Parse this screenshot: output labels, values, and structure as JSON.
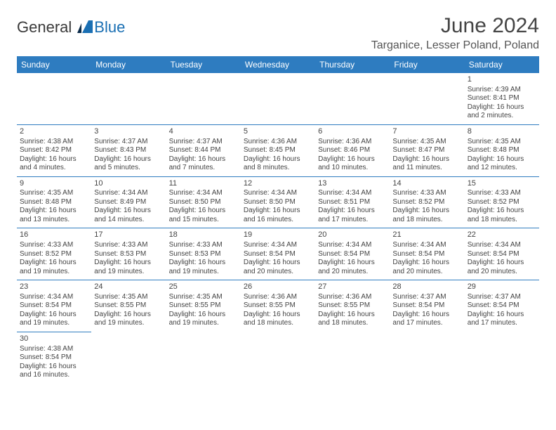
{
  "brand": {
    "word1": "General",
    "word2": "Blue",
    "dark_color": "#3a3a3a",
    "blue_color": "#1a6fb3"
  },
  "title": "June 2024",
  "location": "Targanice, Lesser Poland, Poland",
  "header_bg": "#2e7cc0",
  "header_fg": "#ffffff",
  "border_color": "#2e7cc0",
  "text_color": "#444444",
  "daynames": [
    "Sunday",
    "Monday",
    "Tuesday",
    "Wednesday",
    "Thursday",
    "Friday",
    "Saturday"
  ],
  "weeks": [
    [
      null,
      null,
      null,
      null,
      null,
      null,
      {
        "n": "1",
        "sr": "Sunrise: 4:39 AM",
        "ss": "Sunset: 8:41 PM",
        "d1": "Daylight: 16 hours",
        "d2": "and 2 minutes."
      }
    ],
    [
      {
        "n": "2",
        "sr": "Sunrise: 4:38 AM",
        "ss": "Sunset: 8:42 PM",
        "d1": "Daylight: 16 hours",
        "d2": "and 4 minutes."
      },
      {
        "n": "3",
        "sr": "Sunrise: 4:37 AM",
        "ss": "Sunset: 8:43 PM",
        "d1": "Daylight: 16 hours",
        "d2": "and 5 minutes."
      },
      {
        "n": "4",
        "sr": "Sunrise: 4:37 AM",
        "ss": "Sunset: 8:44 PM",
        "d1": "Daylight: 16 hours",
        "d2": "and 7 minutes."
      },
      {
        "n": "5",
        "sr": "Sunrise: 4:36 AM",
        "ss": "Sunset: 8:45 PM",
        "d1": "Daylight: 16 hours",
        "d2": "and 8 minutes."
      },
      {
        "n": "6",
        "sr": "Sunrise: 4:36 AM",
        "ss": "Sunset: 8:46 PM",
        "d1": "Daylight: 16 hours",
        "d2": "and 10 minutes."
      },
      {
        "n": "7",
        "sr": "Sunrise: 4:35 AM",
        "ss": "Sunset: 8:47 PM",
        "d1": "Daylight: 16 hours",
        "d2": "and 11 minutes."
      },
      {
        "n": "8",
        "sr": "Sunrise: 4:35 AM",
        "ss": "Sunset: 8:48 PM",
        "d1": "Daylight: 16 hours",
        "d2": "and 12 minutes."
      }
    ],
    [
      {
        "n": "9",
        "sr": "Sunrise: 4:35 AM",
        "ss": "Sunset: 8:48 PM",
        "d1": "Daylight: 16 hours",
        "d2": "and 13 minutes."
      },
      {
        "n": "10",
        "sr": "Sunrise: 4:34 AM",
        "ss": "Sunset: 8:49 PM",
        "d1": "Daylight: 16 hours",
        "d2": "and 14 minutes."
      },
      {
        "n": "11",
        "sr": "Sunrise: 4:34 AM",
        "ss": "Sunset: 8:50 PM",
        "d1": "Daylight: 16 hours",
        "d2": "and 15 minutes."
      },
      {
        "n": "12",
        "sr": "Sunrise: 4:34 AM",
        "ss": "Sunset: 8:50 PM",
        "d1": "Daylight: 16 hours",
        "d2": "and 16 minutes."
      },
      {
        "n": "13",
        "sr": "Sunrise: 4:34 AM",
        "ss": "Sunset: 8:51 PM",
        "d1": "Daylight: 16 hours",
        "d2": "and 17 minutes."
      },
      {
        "n": "14",
        "sr": "Sunrise: 4:33 AM",
        "ss": "Sunset: 8:52 PM",
        "d1": "Daylight: 16 hours",
        "d2": "and 18 minutes."
      },
      {
        "n": "15",
        "sr": "Sunrise: 4:33 AM",
        "ss": "Sunset: 8:52 PM",
        "d1": "Daylight: 16 hours",
        "d2": "and 18 minutes."
      }
    ],
    [
      {
        "n": "16",
        "sr": "Sunrise: 4:33 AM",
        "ss": "Sunset: 8:52 PM",
        "d1": "Daylight: 16 hours",
        "d2": "and 19 minutes."
      },
      {
        "n": "17",
        "sr": "Sunrise: 4:33 AM",
        "ss": "Sunset: 8:53 PM",
        "d1": "Daylight: 16 hours",
        "d2": "and 19 minutes."
      },
      {
        "n": "18",
        "sr": "Sunrise: 4:33 AM",
        "ss": "Sunset: 8:53 PM",
        "d1": "Daylight: 16 hours",
        "d2": "and 19 minutes."
      },
      {
        "n": "19",
        "sr": "Sunrise: 4:34 AM",
        "ss": "Sunset: 8:54 PM",
        "d1": "Daylight: 16 hours",
        "d2": "and 20 minutes."
      },
      {
        "n": "20",
        "sr": "Sunrise: 4:34 AM",
        "ss": "Sunset: 8:54 PM",
        "d1": "Daylight: 16 hours",
        "d2": "and 20 minutes."
      },
      {
        "n": "21",
        "sr": "Sunrise: 4:34 AM",
        "ss": "Sunset: 8:54 PM",
        "d1": "Daylight: 16 hours",
        "d2": "and 20 minutes."
      },
      {
        "n": "22",
        "sr": "Sunrise: 4:34 AM",
        "ss": "Sunset: 8:54 PM",
        "d1": "Daylight: 16 hours",
        "d2": "and 20 minutes."
      }
    ],
    [
      {
        "n": "23",
        "sr": "Sunrise: 4:34 AM",
        "ss": "Sunset: 8:54 PM",
        "d1": "Daylight: 16 hours",
        "d2": "and 19 minutes."
      },
      {
        "n": "24",
        "sr": "Sunrise: 4:35 AM",
        "ss": "Sunset: 8:55 PM",
        "d1": "Daylight: 16 hours",
        "d2": "and 19 minutes."
      },
      {
        "n": "25",
        "sr": "Sunrise: 4:35 AM",
        "ss": "Sunset: 8:55 PM",
        "d1": "Daylight: 16 hours",
        "d2": "and 19 minutes."
      },
      {
        "n": "26",
        "sr": "Sunrise: 4:36 AM",
        "ss": "Sunset: 8:55 PM",
        "d1": "Daylight: 16 hours",
        "d2": "and 18 minutes."
      },
      {
        "n": "27",
        "sr": "Sunrise: 4:36 AM",
        "ss": "Sunset: 8:55 PM",
        "d1": "Daylight: 16 hours",
        "d2": "and 18 minutes."
      },
      {
        "n": "28",
        "sr": "Sunrise: 4:37 AM",
        "ss": "Sunset: 8:54 PM",
        "d1": "Daylight: 16 hours",
        "d2": "and 17 minutes."
      },
      {
        "n": "29",
        "sr": "Sunrise: 4:37 AM",
        "ss": "Sunset: 8:54 PM",
        "d1": "Daylight: 16 hours",
        "d2": "and 17 minutes."
      }
    ],
    [
      {
        "n": "30",
        "sr": "Sunrise: 4:38 AM",
        "ss": "Sunset: 8:54 PM",
        "d1": "Daylight: 16 hours",
        "d2": "and 16 minutes."
      },
      null,
      null,
      null,
      null,
      null,
      null
    ]
  ]
}
